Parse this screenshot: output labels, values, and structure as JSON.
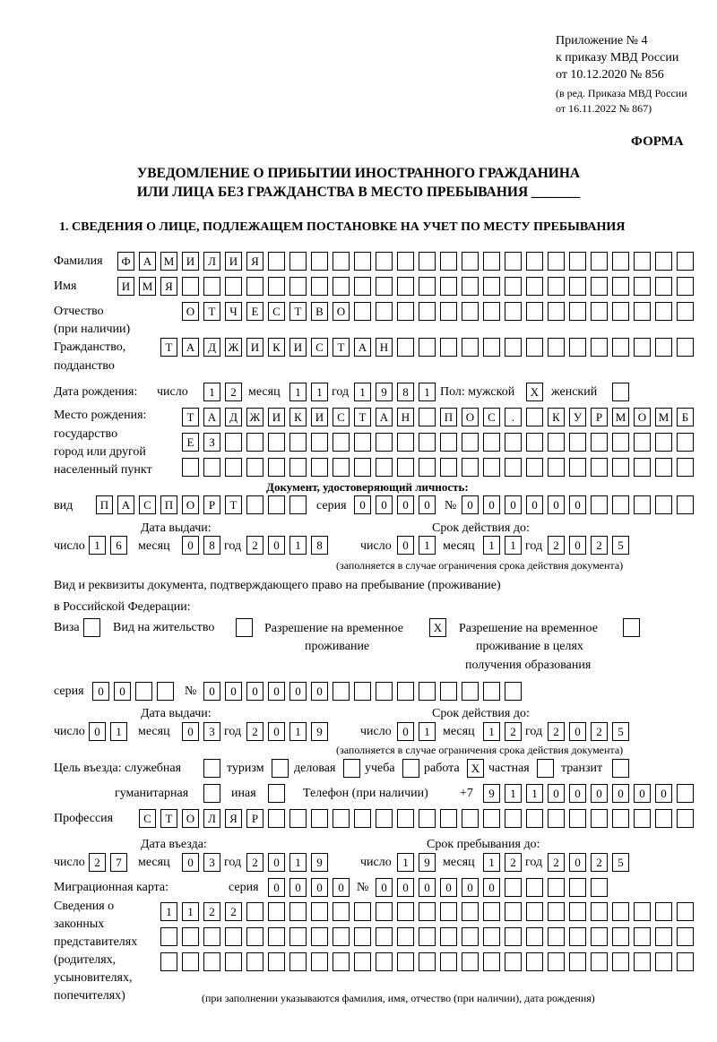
{
  "header": {
    "line1": "Приложение № 4",
    "line2": "к приказу МВД России",
    "line3": "от 10.12.2020 № 856",
    "line4": "(в ред. Приказа МВД России",
    "line5": "от 16.11.2022 № 867)",
    "forma": "ФОРМА",
    "title1": "УВЕДОМЛЕНИЕ О ПРИБЫТИИ ИНОСТРАННОГО ГРАЖДАНИНА",
    "title2": "ИЛИ ЛИЦА БЕЗ ГРАЖДАНСТВА В МЕСТО ПРЕБЫВАНИЯ _______",
    "section1": "1. СВЕДЕНИЯ О ЛИЦЕ, ПОДЛЕЖАЩЕМ ПОСТАНОВКЕ НА УЧЕТ ПО МЕСТУ ПРЕБЫВАНИЯ"
  },
  "labels": {
    "surname": "Фамилия",
    "name": "Имя",
    "patronymic1": "Отчество",
    "patronymic2": "(при наличии)",
    "citizenship1": "Гражданство,",
    "citizenship2": "подданство",
    "birth_date": "Дата рождения:",
    "day": "число",
    "month": "месяц",
    "year": "год",
    "sex": "Пол: мужской",
    "female": "женский",
    "birthplace1": "Место рождения:",
    "birthplace2": "государство",
    "birthplace3": "город или другой",
    "birthplace4": "населенный пункт",
    "id_doc": "Документ, удостоверяющий личность:",
    "doc_type": "вид",
    "series": "серия",
    "number": "№",
    "issue_date": "Дата выдачи:",
    "valid_until": "Срок действия до:",
    "valid_note": "(заполняется в случае ограничения срока действия документа)",
    "permit1": "Вид и реквизиты документа, подтверждающего право на пребывание (проживание)",
    "permit2": "в Российской Федерации:",
    "visa": "Виза",
    "residence": "Вид на жительство",
    "temp1": "Разрешение на временное",
    "temp2": "проживание",
    "edu1": "Разрешение на временное",
    "edu2": "проживание в целях",
    "edu3": "получения образования",
    "purpose": "Цель въезда: служебная",
    "tourism": "туризм",
    "business": "деловая",
    "study": "учеба",
    "work": "работа",
    "private": "частная",
    "transit": "транзит",
    "humanitarian": "гуманитарная",
    "other": "иная",
    "phone": "Телефон (при наличии)",
    "phone_prefix": "+7",
    "profession": "Профессия",
    "entry_date": "Дата въезда:",
    "stay_until": "Срок пребывания до:",
    "migration_card": "Миграционная карта:",
    "reps1": "Сведения о",
    "reps2": "законных",
    "reps3": "представителях",
    "reps4": "(родителях,",
    "reps5": "усыновителях,",
    "reps6": "попечителях)",
    "reps_note": "(при заполнении указываются фамилия, имя, отчество (при наличии), дата рождения)"
  },
  "fields": {
    "surname": "ФАМИЛИЯ",
    "name": "ИМЯ",
    "patronymic": "ОТЧЕСТВО",
    "citizenship": "ТАДЖИКИСТАН",
    "birth_day": "12",
    "birth_month": "11",
    "birth_year": "1981",
    "sex_male": "X",
    "sex_female": "",
    "birthplace_1": "ТАДЖИКИСТАН ПОС. КУРМОМБ",
    "birthplace_2": "ЕЗ",
    "birthplace_3": "",
    "doc_type": "ПАСПОРТ",
    "doc_series": "0000",
    "doc_number": "000000",
    "doc_issue_day": "16",
    "doc_issue_month": "08",
    "doc_issue_year": "2018",
    "doc_valid_day": "01",
    "doc_valid_month": "11",
    "doc_valid_year": "2025",
    "permit_visa": "",
    "permit_residence": "",
    "permit_temp": "X",
    "permit_edu": "",
    "permit_series": "00",
    "permit_number": "000000",
    "permit_issue_day": "01",
    "permit_issue_month": "03",
    "permit_issue_year": "2019",
    "permit_valid_day": "01",
    "permit_valid_month": "12",
    "permit_valid_year": "2025",
    "purpose_service": "",
    "purpose_tourism": "",
    "purpose_business": "",
    "purpose_study": "",
    "purpose_work": "X",
    "purpose_private": "",
    "purpose_transit": "",
    "purpose_humanitarian": "",
    "purpose_other": "",
    "phone": "911000000",
    "profession": "СТОЛЯР",
    "entry_day": "27",
    "entry_month": "03",
    "entry_year": "2019",
    "stay_day": "19",
    "stay_month": "12",
    "stay_year": "2025",
    "mig_series": "0000",
    "mig_number": "000000",
    "reps_1": "1122",
    "reps_2": "",
    "reps_3": ""
  }
}
